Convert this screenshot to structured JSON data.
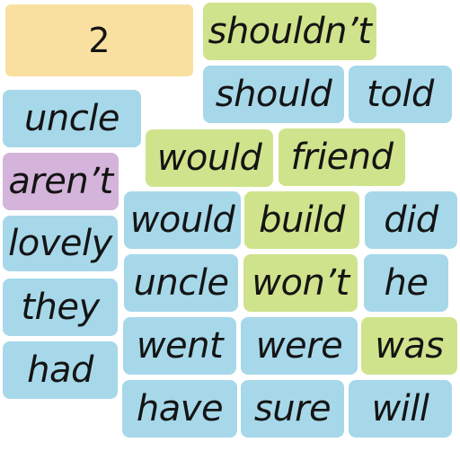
{
  "colors": {
    "blue": "#a6d8ea",
    "green": "#cfe38c",
    "purple": "#d4b4da",
    "score": "#fae0a0"
  },
  "score": {
    "value": "2"
  },
  "tiles": [
    {
      "word": "shouldn’t",
      "color": "green"
    },
    {
      "word": "should",
      "color": "blue"
    },
    {
      "word": "told",
      "color": "blue"
    },
    {
      "word": "uncle",
      "color": "blue"
    },
    {
      "word": "would",
      "color": "green"
    },
    {
      "word": "friend",
      "color": "green"
    },
    {
      "word": "aren’t",
      "color": "purple"
    },
    {
      "word": "would",
      "color": "blue"
    },
    {
      "word": "build",
      "color": "green"
    },
    {
      "word": "did",
      "color": "blue"
    },
    {
      "word": "lovely",
      "color": "blue"
    },
    {
      "word": "uncle",
      "color": "blue"
    },
    {
      "word": "won’t",
      "color": "green"
    },
    {
      "word": "he",
      "color": "blue"
    },
    {
      "word": "they",
      "color": "blue"
    },
    {
      "word": "went",
      "color": "blue"
    },
    {
      "word": "were",
      "color": "blue"
    },
    {
      "word": "was",
      "color": "green"
    },
    {
      "word": "had",
      "color": "blue"
    },
    {
      "word": "have",
      "color": "blue"
    },
    {
      "word": "sure",
      "color": "blue"
    },
    {
      "word": "will",
      "color": "blue"
    }
  ]
}
